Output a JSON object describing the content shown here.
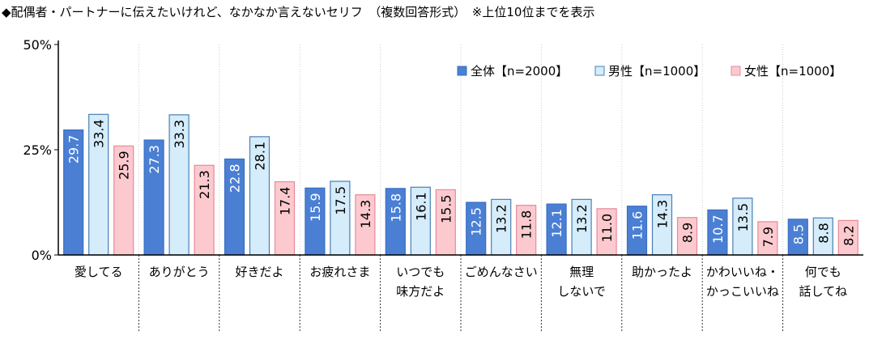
{
  "title": "◆配偶者・パートナーに伝えたいけれど、なかなか言えないセリフ　（複数回答形式）　※上位10位までを表示",
  "chart_data": {
    "type": "bar",
    "ylim": [
      0,
      50
    ],
    "yticks": [
      "0%",
      "25%",
      "50%"
    ],
    "ytick_values": [
      0,
      25,
      50
    ],
    "grid": false,
    "legend_position": "top-right",
    "categories": [
      [
        "愛してる"
      ],
      [
        "ありがとう"
      ],
      [
        "好きだよ"
      ],
      [
        "お疲れさま"
      ],
      [
        "いつでも",
        "味方だよ"
      ],
      [
        "ごめんなさい"
      ],
      [
        "無理",
        "しないで"
      ],
      [
        "助かったよ"
      ],
      [
        "かわいいね・",
        "かっこいいね"
      ],
      [
        "何でも",
        "話してね"
      ]
    ],
    "series": [
      {
        "name": "全体【n=2000】",
        "color": "#4a7fd4",
        "label_color": "#ffffff",
        "stroke": "#3a6fc4",
        "values": [
          29.7,
          27.3,
          22.8,
          15.9,
          15.8,
          12.5,
          12.1,
          11.6,
          10.7,
          8.5
        ]
      },
      {
        "name": "男性【n=1000】",
        "color": "#d5ecfb",
        "label_color": "#000000",
        "stroke": "#4a7fb4",
        "values": [
          33.4,
          33.3,
          28.1,
          17.5,
          16.1,
          13.2,
          13.2,
          14.3,
          13.5,
          8.8
        ]
      },
      {
        "name": "女性【n=1000】",
        "color": "#fcc9cf",
        "label_color": "#000000",
        "stroke": "#e88a98",
        "values": [
          25.9,
          21.3,
          17.4,
          14.3,
          15.5,
          11.8,
          11.0,
          8.9,
          7.9,
          8.2
        ]
      }
    ]
  }
}
